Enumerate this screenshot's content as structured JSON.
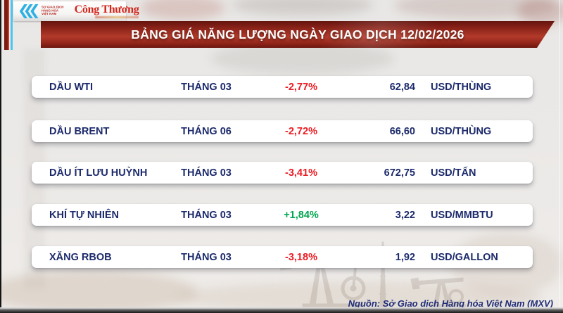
{
  "header": {
    "mxv_logo": {
      "line1": "SỞ GIAO DỊCH",
      "line2": "HÀNG HÓA",
      "line3": "VIỆT NAM"
    },
    "congthuong_logo": "Công Thương",
    "title": "BẢNG GIÁ NĂNG LƯỢNG NGÀY GIAO DỊCH 12/02/2026"
  },
  "table": {
    "rows": [
      {
        "name": "DẦU WTI",
        "month": "THÁNG 03",
        "change": "-2,77%",
        "direction": "down",
        "value": "62,84",
        "unit": "USD/THÙNG"
      },
      {
        "name": "DẦU BRENT",
        "month": "THÁNG 06",
        "change": "-2,72%",
        "direction": "down",
        "value": "66,60",
        "unit": "USD/THÙNG"
      },
      {
        "name": "DẦU ÍT LƯU HUỲNH",
        "month": "THÁNG 03",
        "change": "-3,41%",
        "direction": "down",
        "value": "672,75",
        "unit": "USD/TẤN"
      },
      {
        "name": "KHÍ TỰ NHIÊN",
        "month": "THÁNG 03",
        "change": "+1,84%",
        "direction": "up",
        "value": "3,22",
        "unit": "USD/MMBTU"
      },
      {
        "name": "XĂNG RBOB",
        "month": "THÁNG 03",
        "change": "-3,18%",
        "direction": "down",
        "value": "1,92",
        "unit": "USD/GALLON"
      }
    ]
  },
  "footer": {
    "source": "Nguồn: Sở Giao dịch Hàng hóa Việt Nam (MXV)"
  },
  "colors": {
    "accent_red": "#a5281c",
    "navy_text": "#1c2a6b",
    "down_red": "#ea1c23",
    "up_green": "#00a54f",
    "logo_blue": "#2fb0e5"
  },
  "chart_data": {
    "type": "table",
    "title": "BẢNG GIÁ NĂNG LƯỢNG NGÀY GIAO DỊCH 12/02/2026",
    "columns": [
      "name",
      "contract_month",
      "change_pct",
      "price",
      "unit"
    ],
    "rows": [
      {
        "name": "DẦU WTI",
        "contract_month": "THÁNG 03",
        "change_pct": -2.77,
        "price": 62.84,
        "unit": "USD/THÙNG"
      },
      {
        "name": "DẦU BRENT",
        "contract_month": "THÁNG 06",
        "change_pct": -2.72,
        "price": 66.6,
        "unit": "USD/THÙNG"
      },
      {
        "name": "DẦU ÍT LƯU HUỲNH",
        "contract_month": "THÁNG 03",
        "change_pct": -3.41,
        "price": 672.75,
        "unit": "USD/TẤN"
      },
      {
        "name": "KHÍ TỰ NHIÊN",
        "contract_month": "THÁNG 03",
        "change_pct": 1.84,
        "price": 3.22,
        "unit": "USD/MMBTU"
      },
      {
        "name": "XĂNG RBOB",
        "contract_month": "THÁNG 03",
        "change_pct": -3.18,
        "price": 1.92,
        "unit": "USD/GALLON"
      }
    ],
    "source": "Nguồn: Sở Giao dịch Hàng hóa Việt Nam (MXV)"
  }
}
